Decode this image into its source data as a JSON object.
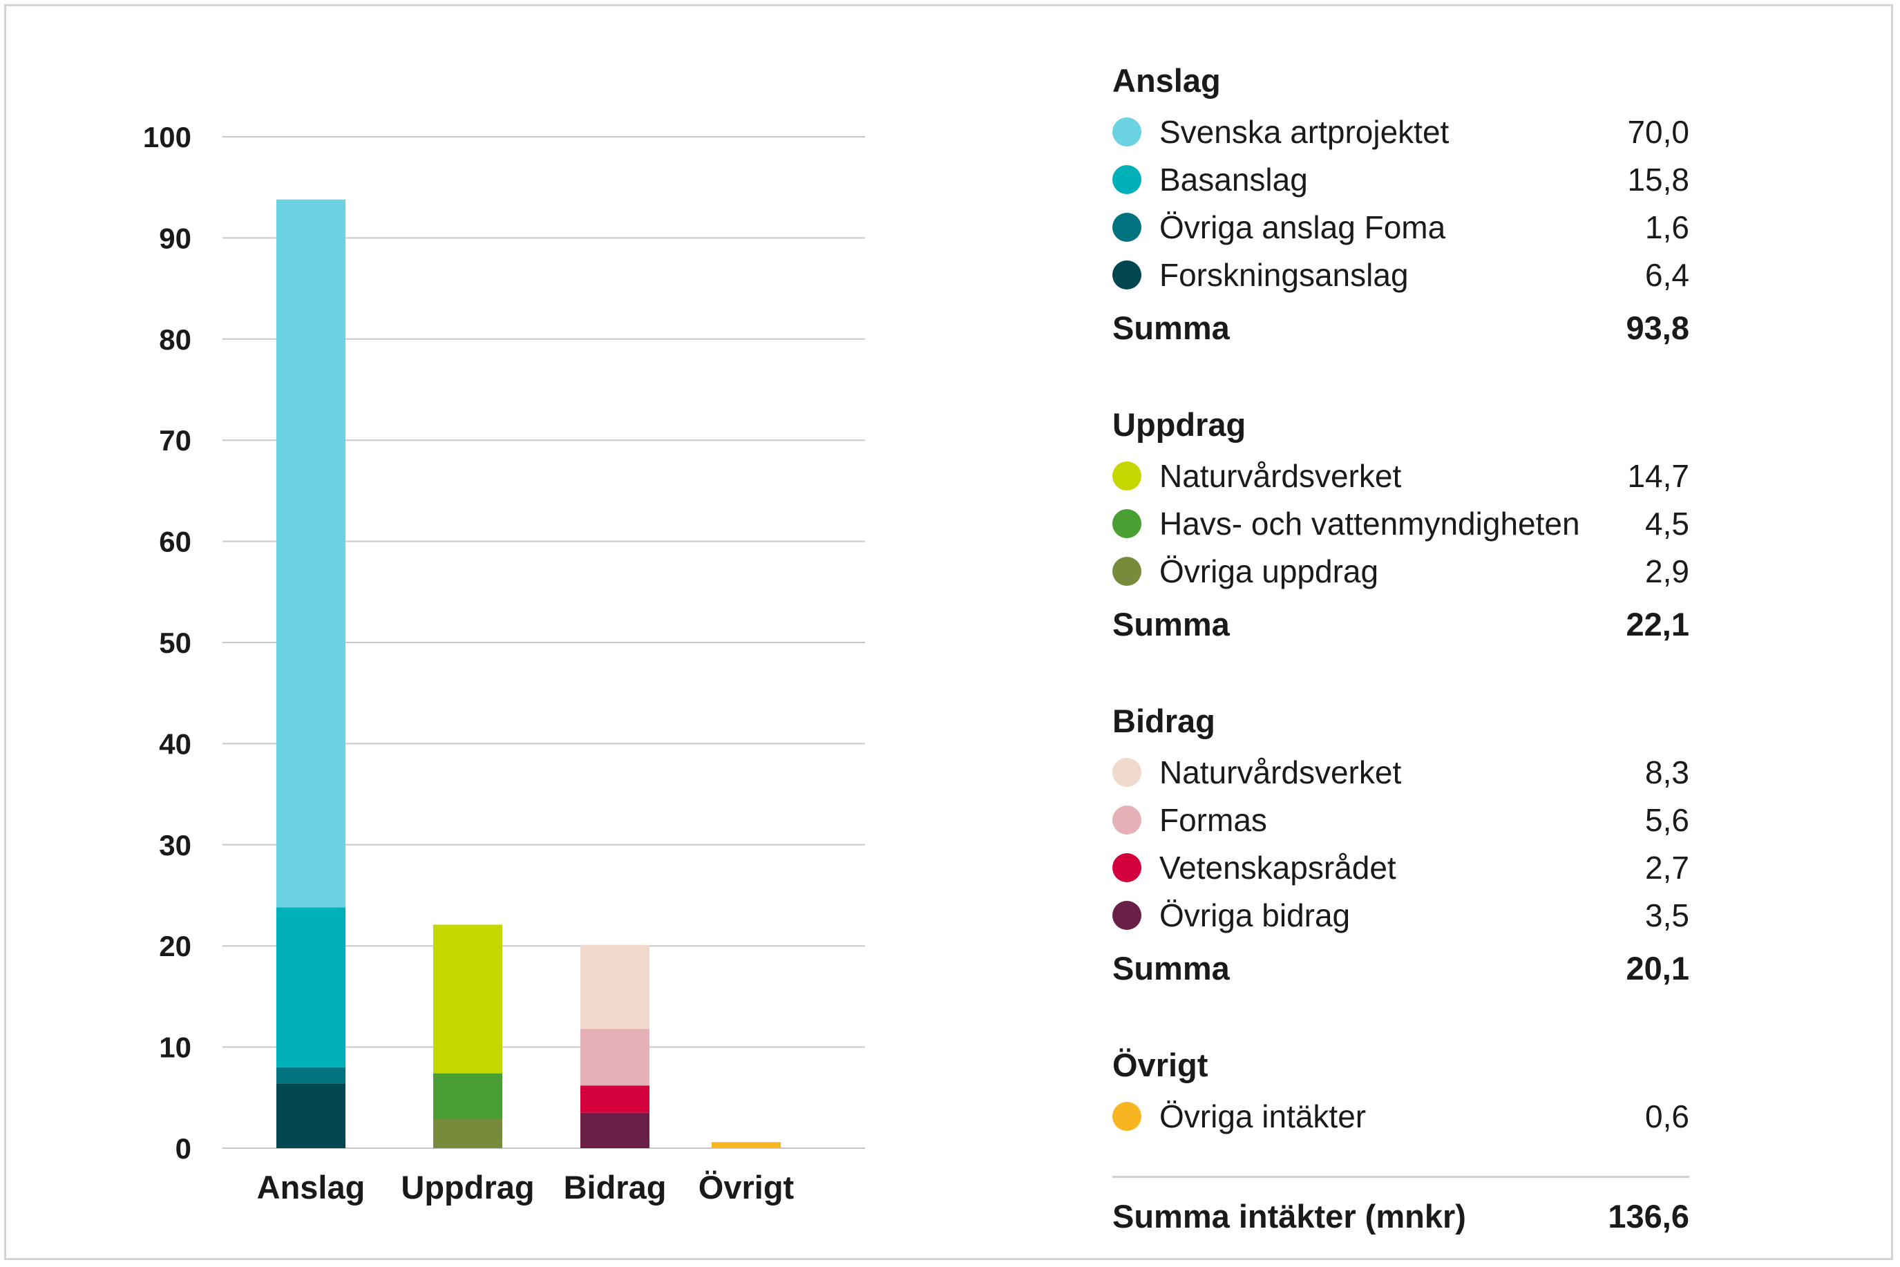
{
  "chart_data": {
    "type": "bar",
    "stacked": true,
    "categories": [
      "Anslag",
      "Uppdrag",
      "Bidrag",
      "Övrigt"
    ],
    "ylim": [
      0,
      100
    ],
    "yticks": [
      0,
      10,
      20,
      30,
      40,
      50,
      60,
      70,
      80,
      90,
      100
    ],
    "grid": true,
    "legend_placement": "right",
    "series": [
      {
        "name": "Forskningsanslag",
        "color": "#024650",
        "values": [
          6.4,
          0,
          0,
          0
        ]
      },
      {
        "name": "Övriga anslag Foma",
        "color": "#00737f",
        "values": [
          1.6,
          0,
          0,
          0
        ]
      },
      {
        "name": "Basanslag",
        "color": "#00b0b9",
        "values": [
          15.8,
          0,
          0,
          0
        ]
      },
      {
        "name": "Svenska artprojektet",
        "color": "#6bd2e2",
        "values": [
          70.0,
          0,
          0,
          0
        ]
      },
      {
        "name": "Övriga uppdrag",
        "color": "#7a8a3c",
        "values": [
          0,
          2.9,
          0,
          0
        ]
      },
      {
        "name": "Havs- och vattenmyndigheten",
        "color": "#4a9f33",
        "values": [
          0,
          4.5,
          0,
          0
        ]
      },
      {
        "name": "Naturvårdsverket",
        "color": "#c4d800",
        "values": [
          0,
          14.7,
          0,
          0
        ]
      },
      {
        "name": "Övriga bidrag",
        "color": "#6a1f47",
        "values": [
          0,
          0,
          3.5,
          0
        ]
      },
      {
        "name": "Vetenskapsrådet",
        "color": "#d4003d",
        "values": [
          0,
          0,
          2.7,
          0
        ]
      },
      {
        "name": "Formas",
        "color": "#e5b1b6",
        "values": [
          0,
          0,
          5.6,
          0
        ]
      },
      {
        "name": "Naturvårdsverket",
        "color": "#f0d9cb",
        "values": [
          0,
          0,
          8.3,
          0
        ]
      },
      {
        "name": "Övriga intäkter",
        "color": "#f8b522",
        "values": [
          0,
          0,
          0,
          0.6
        ]
      }
    ]
  },
  "legend": {
    "groups": [
      {
        "title": "Anslag",
        "items": [
          {
            "label": "Svenska artprojektet",
            "value": "70,0",
            "color": "#6bd2e2"
          },
          {
            "label": "Basanslag",
            "value": "15,8",
            "color": "#00b0b9"
          },
          {
            "label": "Övriga anslag Foma",
            "value": "1,6",
            "color": "#00737f"
          },
          {
            "label": "Forskningsanslag",
            "value": "6,4",
            "color": "#024650"
          }
        ],
        "sum_label": "Summa",
        "sum_value": "93,8"
      },
      {
        "title": "Uppdrag",
        "items": [
          {
            "label": "Naturvårdsverket",
            "value": "14,7",
            "color": "#c4d800"
          },
          {
            "label": "Havs- och vattenmyndigheten",
            "value": "4,5",
            "color": "#4a9f33"
          },
          {
            "label": "Övriga uppdrag",
            "value": "2,9",
            "color": "#7a8a3c"
          }
        ],
        "sum_label": "Summa",
        "sum_value": "22,1"
      },
      {
        "title": "Bidrag",
        "items": [
          {
            "label": "Naturvårdsverket",
            "value": "8,3",
            "color": "#f0d9cb"
          },
          {
            "label": "Formas",
            "value": "5,6",
            "color": "#e5b1b6"
          },
          {
            "label": "Vetenskapsrådet",
            "value": "2,7",
            "color": "#d4003d"
          },
          {
            "label": "Övriga bidrag",
            "value": "3,5",
            "color": "#6a1f47"
          }
        ],
        "sum_label": "Summa",
        "sum_value": "20,1"
      },
      {
        "title": "Övrigt",
        "items": [
          {
            "label": "Övriga intäkter",
            "value": "0,6",
            "color": "#f8b522"
          }
        ]
      }
    ],
    "total_label": "Summa intäkter (mnkr)",
    "total_value": "136,6"
  }
}
